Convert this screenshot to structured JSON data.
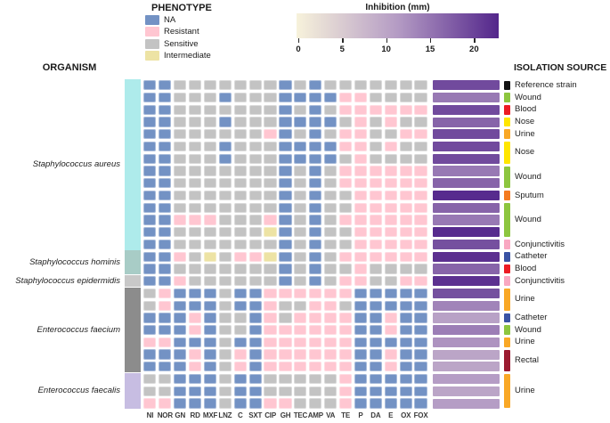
{
  "header": {
    "organism_title": "ORGANISM",
    "isolation_title": "ISOLATION SOURCE"
  },
  "phenotype_legend": {
    "title": "PHENOTYPE",
    "items": [
      {
        "label": "NA",
        "color": "#7392C4"
      },
      {
        "label": "Resistant",
        "color": "#FFC6D1"
      },
      {
        "label": "Sensitive",
        "color": "#C3C3C3"
      },
      {
        "label": "Intermediate",
        "color": "#EDE3A4"
      }
    ]
  },
  "colorbar": {
    "title": "Inhibition (mm)",
    "ticks": [
      0,
      5,
      10,
      15,
      20
    ],
    "min": 0,
    "max": 22.5,
    "stops": [
      "#F7F2DB",
      "#B49BC4",
      "#53268B"
    ]
  },
  "chart_data": {
    "type": "heatmap",
    "columns": [
      "NI",
      "NOR",
      "GN",
      "RD",
      "MXF",
      "LNZ",
      "C",
      "SXT",
      "CIP",
      "GH",
      "TEC",
      "AMP",
      "VA",
      "TE",
      "P",
      "DA",
      "E",
      "OX",
      "FOX"
    ],
    "phenotype_codes": {
      "B": "NA",
      "R": "Resistant",
      "S": "Sensitive",
      "I": "Intermediate"
    },
    "phenotype_colors": {
      "NA": "#7392C4",
      "Resistant": "#FFC6D1",
      "Sensitive": "#C3C3C3",
      "Intermediate": "#EDE3A4"
    },
    "organisms": [
      {
        "name": "Staphylococcus aureus",
        "rows": 14,
        "color": "#AEEBEB"
      },
      {
        "name": "Staphylococcus hominis",
        "rows": 2,
        "color": "#A8CCC6"
      },
      {
        "name": "Staphylococcus epidermidis",
        "rows": 1,
        "color": "#C8C8C8"
      },
      {
        "name": "Enterococcus faecium",
        "rows": 7,
        "color": "#8C8C8C"
      },
      {
        "name": "Enterococcus faecalis",
        "rows": 3,
        "color": "#C7BDE2"
      }
    ],
    "source_groups": [
      {
        "label": "Reference strain",
        "rows": 1,
        "color": "#141414"
      },
      {
        "label": "Wound",
        "rows": 1,
        "color": "#8DC63F"
      },
      {
        "label": "Blood",
        "rows": 1,
        "color": "#EC1C24"
      },
      {
        "label": "Nose",
        "rows": 1,
        "color": "#FFE600"
      },
      {
        "label": "Urine",
        "rows": 1,
        "color": "#F9A826"
      },
      {
        "label": "Nose",
        "rows": 2,
        "color": "#FFE600"
      },
      {
        "label": "Wound",
        "rows": 2,
        "color": "#8DC63F"
      },
      {
        "label": "Sputum",
        "rows": 1,
        "color": "#F47B20"
      },
      {
        "label": "Wound",
        "rows": 3,
        "color": "#8DC63F"
      },
      {
        "label": "Conjunctivitis",
        "rows": 1,
        "color": "#F9A8C2"
      },
      {
        "label": "Catheter",
        "rows": 1,
        "color": "#3A53A4"
      },
      {
        "label": "Blood",
        "rows": 1,
        "color": "#EC1C24"
      },
      {
        "label": "Conjunctivitis",
        "rows": 1,
        "color": "#F9A8C2"
      },
      {
        "label": "Urine",
        "rows": 2,
        "color": "#F9A826"
      },
      {
        "label": "Catheter",
        "rows": 1,
        "color": "#3A53A4"
      },
      {
        "label": "Wound",
        "rows": 1,
        "color": "#8DC63F"
      },
      {
        "label": "Urine",
        "rows": 1,
        "color": "#F9A826"
      },
      {
        "label": "Rectal",
        "rows": 2,
        "color": "#9B1B30"
      },
      {
        "label": "Urine",
        "rows": 3,
        "color": "#F9A826"
      }
    ],
    "rows": [
      {
        "phenotypes": "BBSSSSSSSBSBSSSSSSS",
        "inhibition_mm": 19
      },
      {
        "phenotypes": "BBSSSBSSSBBBBRRSSSS",
        "inhibition_mm": 14.5
      },
      {
        "phenotypes": "BBSSSSSSSBSBSRRRRRR",
        "inhibition_mm": 19
      },
      {
        "phenotypes": "BBSSSBSSSBBBBSRSRSS",
        "inhibition_mm": 16.5
      },
      {
        "phenotypes": "BBSSSSSSRBSBSRRSSRR",
        "inhibition_mm": 19
      },
      {
        "phenotypes": "BBSSSBSSSBBBBRRSRSS",
        "inhibition_mm": 19
      },
      {
        "phenotypes": "BBSSSBSSSBBBBSRSSSS",
        "inhibition_mm": 19
      },
      {
        "phenotypes": "BBSSSSSSSBSBSRRRRRR",
        "inhibition_mm": 14.5
      },
      {
        "phenotypes": "BBSSSSSSSBSBSRRRRRR",
        "inhibition_mm": 16.5
      },
      {
        "phenotypes": "BBSSSSSSSBSBSSRRRRR",
        "inhibition_mm": 22
      },
      {
        "phenotypes": "BBSSSSSSSBSBSSRRRRR",
        "inhibition_mm": 16.5
      },
      {
        "phenotypes": "BBRRRSSSRBSBSRRRRRR",
        "inhibition_mm": 14.5
      },
      {
        "phenotypes": "BBSSSSSSIBSBSSRRRRR",
        "inhibition_mm": 22
      },
      {
        "phenotypes": "BBSSSSSSSBSBSSRRRRR",
        "inhibition_mm": 18.5
      },
      {
        "phenotypes": "BBRSISRRIBSBSRRRRRR",
        "inhibition_mm": 21.5
      },
      {
        "phenotypes": "BBSSSSSSSBSBSSRSSSS",
        "inhibition_mm": 16.5
      },
      {
        "phenotypes": "BBRSSSSSSBSBSRRSSRR",
        "inhibition_mm": 21.5
      },
      {
        "phenotypes": "SRBBBSBBRRRRRRBBBBB",
        "inhibition_mm": 18.5
      },
      {
        "phenotypes": "SRBBBSBBRSSRRSBBBBB",
        "inhibition_mm": 13.5
      },
      {
        "phenotypes": "BBBRBSSBRSRRRRBBRBB",
        "inhibition_mm": 10.5
      },
      {
        "phenotypes": "BBBRBSSBRRRRRRBBRBB",
        "inhibition_mm": 14
      },
      {
        "phenotypes": "RRBBBSBBRRRRRRBBBBB",
        "inhibition_mm": 12
      },
      {
        "phenotypes": "BBBRBSRBRRRRRRBBRBB",
        "inhibition_mm": 10
      },
      {
        "phenotypes": "BBBRBSRBRRRRRRBBRBB",
        "inhibition_mm": 10
      },
      {
        "phenotypes": "SSBBBSBBSSSSSRBBBBB",
        "inhibition_mm": 11
      },
      {
        "phenotypes": "SSBBBSBBSSSSSRBBBBB",
        "inhibition_mm": 10
      },
      {
        "phenotypes": "RRBBBSBBRRSSSRBBBBB",
        "inhibition_mm": 11
      }
    ]
  }
}
